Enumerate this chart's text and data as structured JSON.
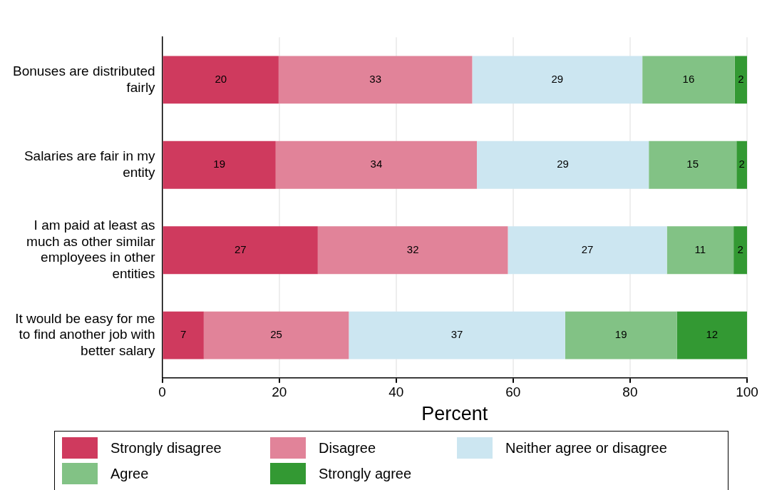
{
  "chart_data": {
    "type": "bar",
    "orientation": "horizontal",
    "stacked": true,
    "xlabel": "Percent",
    "categories": [
      "Bonuses are distributed fairly",
      "Salaries are fair in my entity",
      "I am paid at least as much as other similar employees in other entities",
      "It would be easy for me to find another job with better salary"
    ],
    "series": [
      {
        "name": "Strongly disagree",
        "color": "#cf3a5e",
        "values": [
          19.9,
          19.4,
          26.6,
          7.1
        ],
        "value_labels": [
          "20",
          "19",
          "27",
          "7"
        ]
      },
      {
        "name": "Disagree",
        "color": "#e18399",
        "values": [
          33.1,
          34.4,
          32.5,
          24.8
        ],
        "value_labels": [
          "33",
          "34",
          "32",
          "25"
        ]
      },
      {
        "name": "Neither agree or disagree",
        "color": "#cce6f1",
        "values": [
          29.1,
          29.4,
          27.2,
          37.0
        ],
        "value_labels": [
          "29",
          "29",
          "27",
          "37"
        ]
      },
      {
        "name": "Agree",
        "color": "#82c285",
        "values": [
          15.8,
          15.0,
          11.4,
          19.1
        ],
        "value_labels": [
          "16",
          "15",
          "11",
          "19"
        ]
      },
      {
        "name": "Strongly agree",
        "color": "#339933",
        "values": [
          2.1,
          1.8,
          2.3,
          12.0
        ],
        "value_labels": [
          "2",
          "2",
          "2",
          "12"
        ]
      }
    ],
    "xlim": [
      0,
      100
    ],
    "xticks": [
      0,
      20,
      40,
      60,
      80,
      100
    ],
    "grid": "x",
    "legend": "bottom"
  }
}
